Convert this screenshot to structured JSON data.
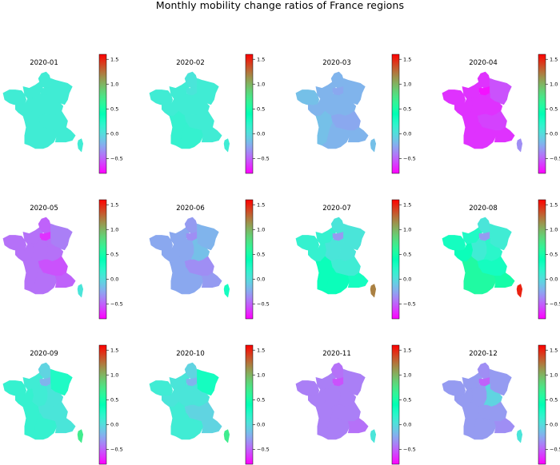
{
  "title": "Monthly mobility change ratios of France regions",
  "colormap": "rainbow",
  "colorbar": {
    "range": [
      -0.8,
      1.6
    ],
    "ticks": [
      -0.5,
      0.0,
      0.5,
      1.0,
      1.5
    ],
    "tick_labels": [
      "−0.5",
      "0.0",
      "0.5",
      "1.0",
      "1.5"
    ]
  },
  "chart_data": {
    "type": "choropleth",
    "title": "Monthly mobility change ratios of France regions",
    "regions": [
      "Bretagne",
      "Normandie",
      "Hauts-de-France",
      "Ile-de-France",
      "Grand Est",
      "Pays de la Loire",
      "Centre-Val de Loire",
      "Bourgogne-Franche-Comte",
      "Nouvelle-Aquitaine",
      "Auvergne-Rhone-Alpes",
      "Occitanie",
      "Provence-Alpes-Cote d'Azur",
      "Corse"
    ],
    "color_range": [
      -0.8,
      1.6
    ],
    "panels": [
      {
        "label": "2020-01",
        "values": [
          0.1,
          0.1,
          0.1,
          0.1,
          0.1,
          0.1,
          0.1,
          0.1,
          0.1,
          0.1,
          0.1,
          0.1,
          0.1
        ]
      },
      {
        "label": "2020-02",
        "values": [
          0.1,
          0.1,
          0.05,
          0.05,
          0.1,
          0.1,
          0.1,
          0.1,
          0.15,
          0.1,
          0.15,
          0.1,
          0.1
        ]
      },
      {
        "label": "2020-03",
        "values": [
          -0.15,
          -0.2,
          -0.2,
          -0.25,
          -0.2,
          -0.2,
          -0.2,
          -0.2,
          -0.15,
          -0.25,
          -0.2,
          -0.2,
          -0.15
        ]
      },
      {
        "label": "2020-04",
        "values": [
          -0.65,
          -0.65,
          -0.65,
          -0.75,
          -0.55,
          -0.65,
          -0.65,
          -0.65,
          -0.65,
          -0.6,
          -0.65,
          -0.65,
          -0.35
        ]
      },
      {
        "label": "2020-05",
        "values": [
          -0.45,
          -0.45,
          -0.5,
          -0.65,
          -0.4,
          -0.45,
          -0.45,
          -0.45,
          -0.45,
          -0.55,
          -0.45,
          -0.5,
          0.05
        ]
      },
      {
        "label": "2020-06",
        "values": [
          -0.25,
          -0.25,
          -0.3,
          -0.35,
          -0.2,
          -0.25,
          -0.25,
          -0.15,
          -0.25,
          -0.35,
          -0.25,
          -0.3,
          0.3
        ]
      },
      {
        "label": "2020-07",
        "values": [
          0.15,
          0.15,
          0.05,
          -0.3,
          0.05,
          0.15,
          0.05,
          0.05,
          0.35,
          0.1,
          0.35,
          0.3,
          1.2
        ]
      },
      {
        "label": "2020-08",
        "values": [
          0.3,
          0.25,
          0.05,
          -0.3,
          0.1,
          0.35,
          0.1,
          0.2,
          0.55,
          0.3,
          0.55,
          0.5,
          1.5
        ]
      },
      {
        "label": "2020-09",
        "values": [
          0.15,
          0.1,
          -0.05,
          -0.2,
          0.25,
          0.15,
          0.1,
          0.05,
          0.15,
          0.05,
          0.15,
          0.05,
          0.7
        ]
      },
      {
        "label": "2020-10",
        "values": [
          0.1,
          0.05,
          -0.05,
          -0.2,
          0.3,
          0.05,
          0.05,
          0.05,
          0.1,
          -0.05,
          0.1,
          -0.05,
          0.7
        ]
      },
      {
        "label": "2020-11",
        "values": [
          -0.4,
          -0.4,
          -0.45,
          -0.55,
          -0.4,
          -0.4,
          -0.4,
          -0.4,
          -0.4,
          -0.4,
          -0.4,
          -0.45,
          0.05
        ]
      },
      {
        "label": "2020-12",
        "values": [
          -0.3,
          -0.3,
          -0.35,
          -0.5,
          -0.3,
          -0.3,
          -0.3,
          -0.05,
          -0.3,
          -0.3,
          -0.3,
          -0.35,
          0.05
        ]
      }
    ]
  }
}
